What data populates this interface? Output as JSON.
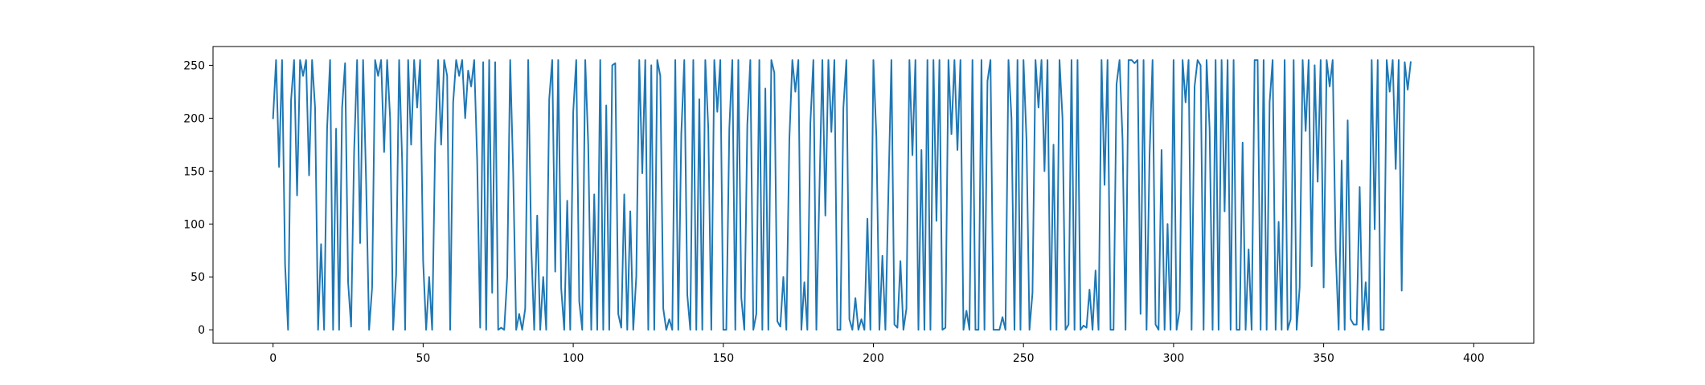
{
  "chart_data": {
    "type": "line",
    "title": "",
    "xlabel": "",
    "ylabel": "",
    "xlim": [
      -20,
      420
    ],
    "ylim": [
      -12.75,
      267.75
    ],
    "grid": false,
    "legend": "none",
    "x_ticks": [
      0,
      50,
      100,
      150,
      200,
      250,
      300,
      350,
      400
    ],
    "y_ticks": [
      0,
      50,
      100,
      150,
      200,
      250
    ],
    "series": [
      {
        "color": "#1f77b4",
        "x_start": 0,
        "x_step": 1,
        "values": [
          200,
          255,
          154,
          255,
          62,
          0,
          217,
          255,
          127,
          255,
          240,
          255,
          146,
          255,
          210,
          0,
          81,
          0,
          190,
          255,
          0,
          190,
          0,
          210,
          252,
          45,
          3,
          168,
          255,
          82,
          255,
          140,
          0,
          40,
          255,
          240,
          255,
          168,
          255,
          200,
          0,
          52,
          255,
          160,
          0,
          255,
          175,
          255,
          210,
          255,
          65,
          0,
          50,
          0,
          175,
          255,
          175,
          255,
          240,
          0,
          215,
          255,
          240,
          255,
          200,
          245,
          230,
          255,
          160,
          2,
          253,
          0,
          255,
          35,
          253,
          0,
          2,
          0,
          50,
          255,
          148,
          0,
          15,
          0,
          20,
          255,
          80,
          0,
          108,
          0,
          50,
          0,
          218,
          255,
          55,
          255,
          39,
          0,
          122,
          0,
          206,
          255,
          27,
          0,
          255,
          175,
          0,
          128,
          0,
          255,
          0,
          212,
          0,
          250,
          252,
          15,
          2,
          128,
          0,
          112,
          0,
          50,
          255,
          148,
          255,
          0,
          250,
          0,
          255,
          240,
          20,
          0,
          10,
          0,
          255,
          0,
          185,
          255,
          33,
          0,
          255,
          0,
          218,
          0,
          255,
          190,
          0,
          255,
          206,
          255,
          0,
          0,
          190,
          255,
          0,
          255,
          30,
          0,
          194,
          255,
          0,
          15,
          255,
          0,
          228,
          0,
          255,
          243,
          8,
          3,
          50,
          0,
          180,
          255,
          225,
          255,
          0,
          45,
          0,
          195,
          255,
          0,
          130,
          255,
          108,
          255,
          187,
          255,
          0,
          0,
          210,
          255,
          10,
          0,
          30,
          0,
          10,
          0,
          105,
          0,
          255,
          182,
          0,
          70,
          0,
          130,
          255,
          5,
          2,
          65,
          0,
          20,
          255,
          165,
          255,
          0,
          170,
          0,
          255,
          0,
          255,
          103,
          255,
          0,
          2,
          255,
          185,
          255,
          170,
          255,
          0,
          18,
          0,
          255,
          0,
          0,
          255,
          0,
          235,
          255,
          0,
          0,
          0,
          12,
          0,
          255,
          200,
          0,
          255,
          0,
          255,
          180,
          0,
          35,
          255,
          210,
          255,
          150,
          255,
          0,
          175,
          0,
          255,
          200,
          0,
          5,
          255,
          0,
          255,
          0,
          4,
          2,
          38,
          0,
          56,
          0,
          255,
          137,
          255,
          0,
          0,
          232,
          255,
          180,
          0,
          255,
          255,
          252,
          255,
          15,
          255,
          0,
          165,
          255,
          5,
          0,
          170,
          0,
          100,
          0,
          255,
          0,
          18,
          255,
          215,
          255,
          0,
          230,
          255,
          250,
          0,
          255,
          190,
          0,
          255,
          0,
          255,
          112,
          255,
          0,
          255,
          0,
          0,
          177,
          0,
          76,
          0,
          255,
          255,
          0,
          255,
          0,
          215,
          255,
          0,
          102,
          0,
          255,
          0,
          10,
          255,
          0,
          40,
          255,
          188,
          255,
          60,
          250,
          140,
          255,
          40,
          255,
          230,
          255,
          75,
          0,
          160,
          0,
          198,
          10,
          5,
          5,
          135,
          0,
          45,
          0,
          255,
          95,
          255,
          0,
          0,
          255,
          225,
          255,
          152,
          255,
          37,
          253,
          227,
          253
        ]
      }
    ]
  }
}
